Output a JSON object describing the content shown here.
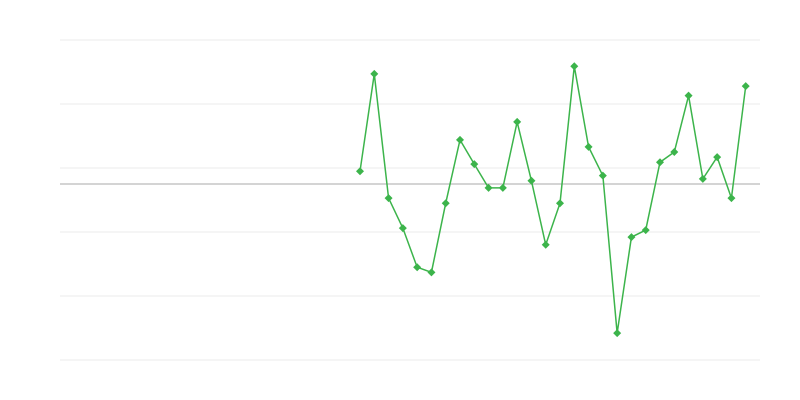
{
  "chart_data": {
    "type": "line",
    "title": "",
    "xlabel": "",
    "ylabel": "",
    "x_count": 50,
    "xlim": [
      0,
      49
    ],
    "ylim": [
      -2.75,
      2.25
    ],
    "gridlines_y": [
      -2.75,
      -1.75,
      -0.75,
      0.25,
      1.25,
      2.25
    ],
    "zero_line": 0,
    "grid": true,
    "legend": "none",
    "series": [
      {
        "color": "#3cb44b",
        "marker": "diamond",
        "x": [
          21,
          22,
          23,
          24,
          25,
          26,
          27,
          28,
          29,
          30,
          31,
          32,
          33,
          34,
          35,
          36,
          37,
          38,
          39,
          40,
          41,
          42,
          43,
          44,
          45,
          46,
          47,
          48
        ],
        "values": [
          0.2,
          1.72,
          -0.22,
          -0.69,
          -1.3,
          -1.38,
          -0.3,
          0.69,
          0.31,
          -0.06,
          -0.06,
          0.97,
          0.05,
          -0.95,
          -0.3,
          1.84,
          0.58,
          0.13,
          -2.33,
          -0.83,
          -0.72,
          0.34,
          0.5,
          1.38,
          0.08,
          0.42,
          -0.22,
          1.53
        ]
      }
    ],
    "colors": {
      "grid": "#ebebeb",
      "zero_line": "#aaaaaa"
    }
  }
}
